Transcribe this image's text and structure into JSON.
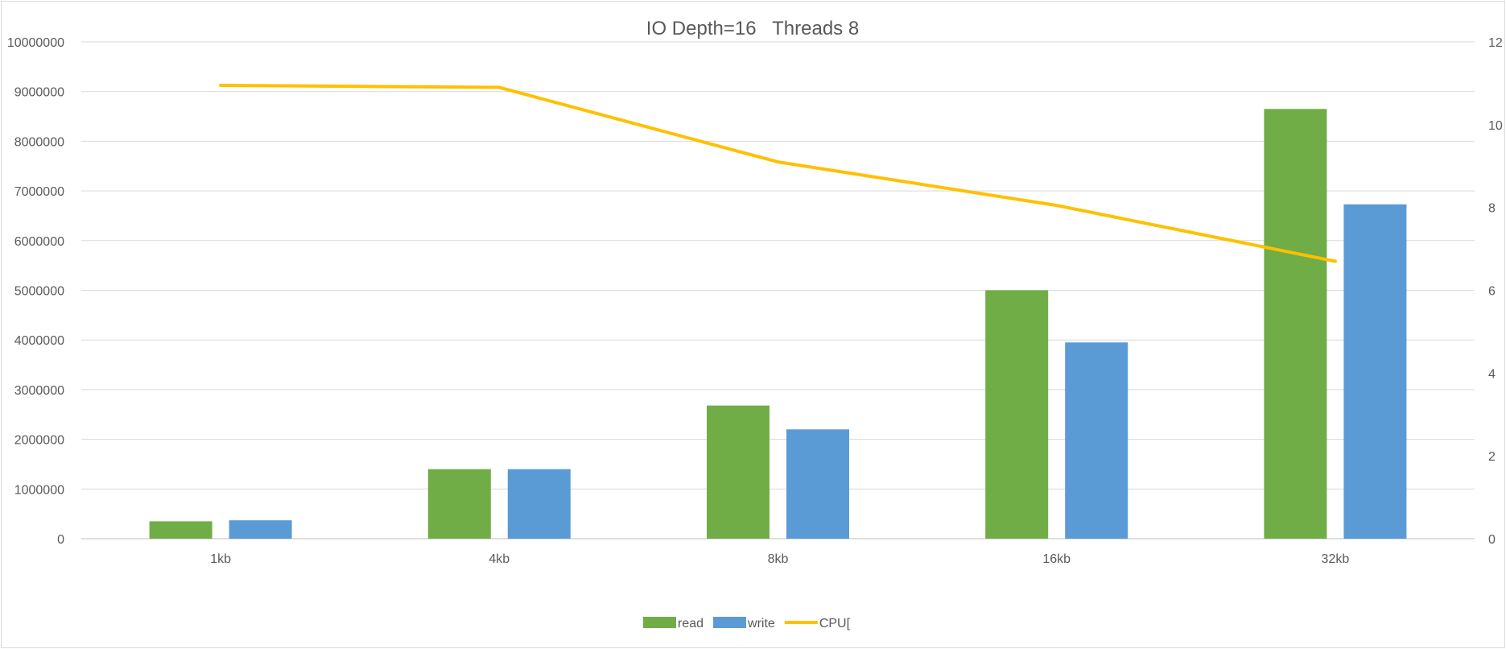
{
  "chart_data": {
    "type": "bar",
    "title": "IO Depth=16   Threads 8",
    "categories": [
      "1kb",
      "4kb",
      "8kb",
      "16kb",
      "32kb"
    ],
    "series": [
      {
        "name": "read",
        "type": "bar",
        "axis": "left",
        "color": "#70ad47",
        "values": [
          350000,
          1400000,
          2680000,
          5000000,
          8650000
        ]
      },
      {
        "name": "write",
        "type": "bar",
        "axis": "left",
        "color": "#5b9bd5",
        "values": [
          370000,
          1400000,
          2200000,
          3950000,
          6730000
        ]
      },
      {
        "name": "CPU[",
        "type": "line",
        "axis": "right",
        "color": "#ffc000",
        "values": [
          10.95,
          10.9,
          9.1,
          8.05,
          6.7
        ]
      }
    ],
    "y_left": {
      "ylim": [
        0,
        10000000
      ],
      "ticks": [
        "0",
        "1000000",
        "2000000",
        "3000000",
        "4000000",
        "5000000",
        "6000000",
        "7000000",
        "8000000",
        "9000000",
        "10000000"
      ]
    },
    "y_right": {
      "ylim": [
        0,
        12
      ],
      "ticks": [
        "0",
        "2",
        "4",
        "6",
        "8",
        "10",
        "12"
      ]
    },
    "grid": true,
    "legend": "bottom"
  }
}
